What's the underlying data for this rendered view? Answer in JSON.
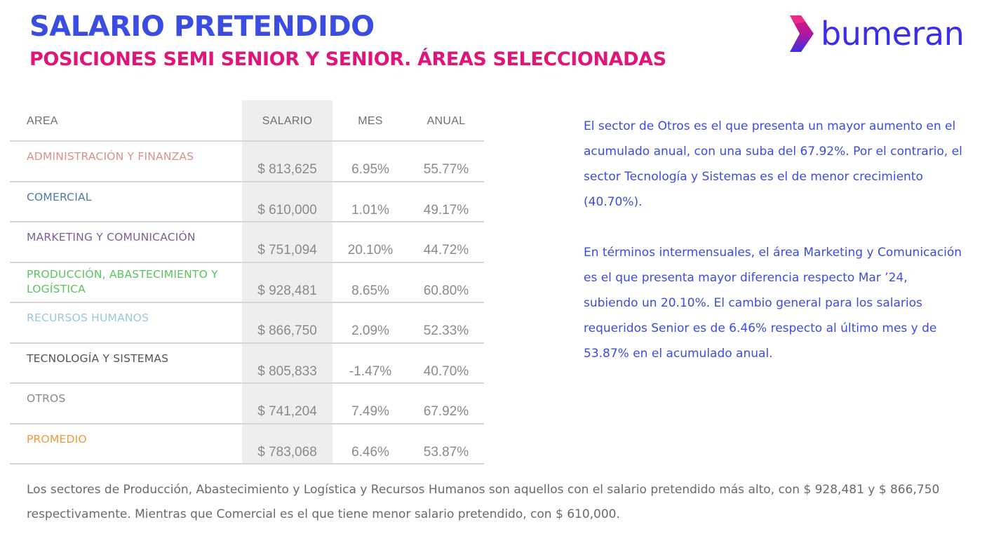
{
  "header": {
    "title": "SALARIO PRETENDIDO",
    "subtitle": "POSICIONES SEMI SENIOR Y SENIOR. ÁREAS SELECCIONADAS"
  },
  "logo": {
    "text": "bumeran",
    "icon": "chevron-right-icon",
    "colors": [
      "#e0157a",
      "#3b2ee6"
    ]
  },
  "table": {
    "headers": {
      "area": "AREA",
      "salario": "SALARIO",
      "mes": "MES",
      "anual": "ANUAL"
    },
    "rows": [
      {
        "area": "ADMINISTRACIÓN Y FINANZAS",
        "color": "#d99288",
        "salario": "$ 813,625",
        "mes": "6.95%",
        "anual": "55.77%"
      },
      {
        "area": "COMERCIAL",
        "color": "#4f79a8",
        "salario": "$ 610,000",
        "mes": "1.01%",
        "anual": "49.17%"
      },
      {
        "area": "MARKETING Y COMUNICACIÓN",
        "color": "#7d5f96",
        "salario": "$ 751,094",
        "mes": "20.10%",
        "anual": "44.72%"
      },
      {
        "area": "PRODUCCIÓN, ABASTECIMIENTO Y LOGÍSTICA",
        "color": "#5bc45e",
        "salario": "$ 928,481",
        "mes": "8.65%",
        "anual": "60.80%"
      },
      {
        "area": "RECURSOS HUMANOS",
        "color": "#96c8de",
        "salario": "$ 866,750",
        "mes": "2.09%",
        "anual": "52.33%"
      },
      {
        "area": "TECNOLOGÍA Y SISTEMAS",
        "color": "#555555",
        "salario": "$ 805,833",
        "mes": "-1.47%",
        "anual": "40.70%"
      },
      {
        "area": "OTROS",
        "color": "#8a8a8a",
        "salario": "$ 741,204",
        "mes": "7.49%",
        "anual": "67.92%"
      },
      {
        "area": "PROMEDIO",
        "color": "#ee9a3a",
        "salario": "$ 783,068",
        "mes": "6.46%",
        "anual": "53.87%"
      }
    ]
  },
  "side_text": {
    "p1": "El sector de Otros es el que presenta un mayor aumento en el acumulado anual, con una suba del 67.92%. Por el contrario, el sector Tecnología y Sistemas es el de menor crecimiento (40.70%).",
    "p2": "En términos intermensuales, el área Marketing y Comunicación es el que presenta mayor diferencia respecto Mar ’24, subiendo un 20.10%. El cambio general para los salarios requeridos Senior es de 6.46% respecto al último mes y de 53.87% en el acumulado anual."
  },
  "bottom_text": "Los sectores de Producción, Abastecimiento y Logística y Recursos Humanos son aquellos con el salario pretendido más alto, con $ 928,481 y $ 866,750 respectivamente. Mientras que Comercial es el que tiene menor salario pretendido, con $ 610,000."
}
